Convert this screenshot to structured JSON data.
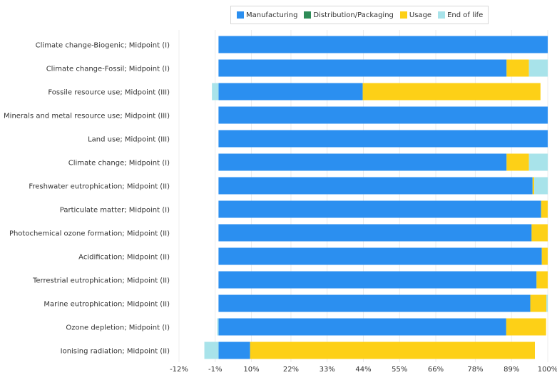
{
  "chart_data": {
    "type": "bar",
    "orientation": "horizontal",
    "stacked": true,
    "x_ticks": [
      "-12%",
      "-1%",
      "10%",
      "22%",
      "33%",
      "44%",
      "55%",
      "66%",
      "78%",
      "89%",
      "100%"
    ],
    "xlim": [
      -12,
      100
    ],
    "legend_position": "top",
    "categories": [
      "Climate change-Biogenic; Midpoint (I)",
      "Climate change-Fossil; Midpoint (I)",
      "Fossile resource use; Midpoint (III)",
      "Minerals and metal resource use; Midpoint (III)",
      "Land use; Midpoint (III)",
      "Climate change; Midpoint (I)",
      "Freshwater eutrophication; Midpoint (II)",
      "Particulate matter; Midpoint (I)",
      "Photochemical ozone formation; Midpoint (II)",
      "Acidification; Midpoint (II)",
      "Terrestrial eutrophication; Midpoint (II)",
      "Marine eutrophication; Midpoint (II)",
      "Ozone depletion; Midpoint (I)",
      "Ionising radiation; Midpoint (II)"
    ],
    "series": [
      {
        "name": "Manufacturing",
        "color": "#2b8ff0",
        "values": [
          100,
          87.5,
          43.8,
          100,
          100,
          87.5,
          95.4,
          98,
          95.1,
          98.2,
          96.6,
          94.7,
          87.4,
          9.6
        ]
      },
      {
        "name": "Distribution/Packaging",
        "color": "#2e8b57",
        "values": [
          0,
          0,
          0,
          0,
          0,
          0,
          0,
          0,
          0,
          0,
          0,
          0,
          0,
          0
        ]
      },
      {
        "name": "Usage",
        "color": "#fdd017",
        "values": [
          0,
          6.8,
          54,
          0,
          0,
          6.8,
          0.5,
          2,
          4.9,
          1.8,
          3.4,
          4.9,
          12.1,
          86.5
        ]
      },
      {
        "name": "End of life",
        "color": "#a8e3ea",
        "values": [
          0,
          5.7,
          -2,
          0,
          0,
          5.7,
          4.1,
          0,
          0,
          0,
          0,
          0.4,
          -0.4,
          -4.3
        ]
      }
    ]
  }
}
